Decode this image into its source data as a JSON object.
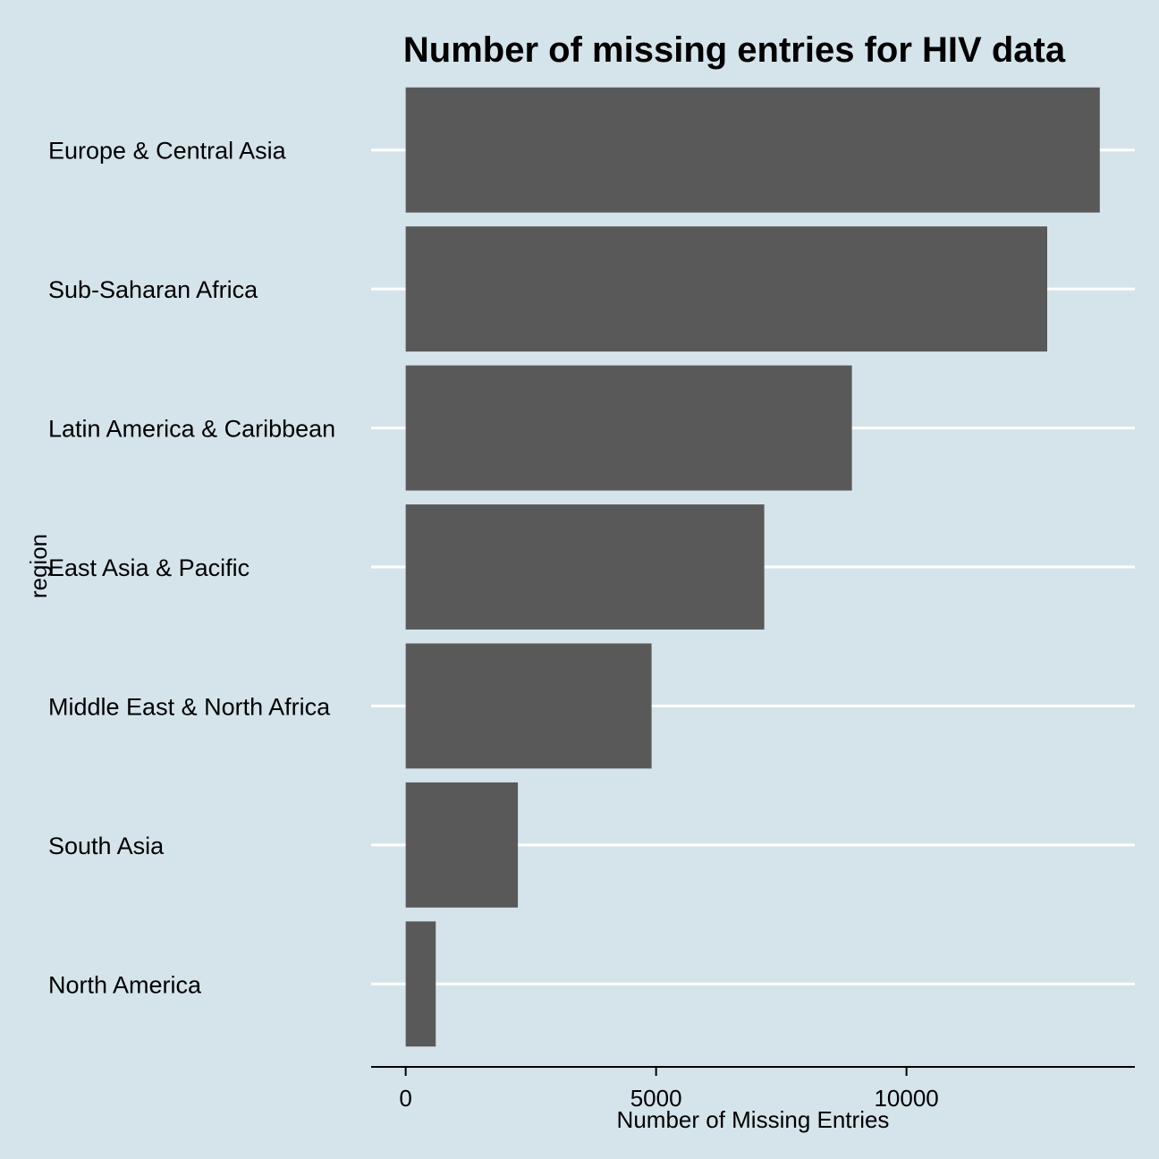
{
  "chart_data": {
    "type": "bar",
    "orientation": "horizontal",
    "title": "Number of missing entries for HIV data",
    "xlabel": "Number of Missing Entries",
    "ylabel": "region",
    "categories": [
      "Europe & Central Asia",
      "Sub-Saharan Africa",
      "Latin America & Caribbean",
      "East Asia & Pacific",
      "Middle East & North Africa",
      "South Asia",
      "North America"
    ],
    "values": [
      13860,
      12810,
      8910,
      7160,
      4910,
      2240,
      600
    ],
    "xticks": [
      0,
      5000,
      10000
    ],
    "xlim": [
      -690,
      14560
    ],
    "bar_color": "#595959",
    "gridline_color": "#ffffff",
    "background_color": "#d5e4eb",
    "grid": "major horizontal"
  }
}
